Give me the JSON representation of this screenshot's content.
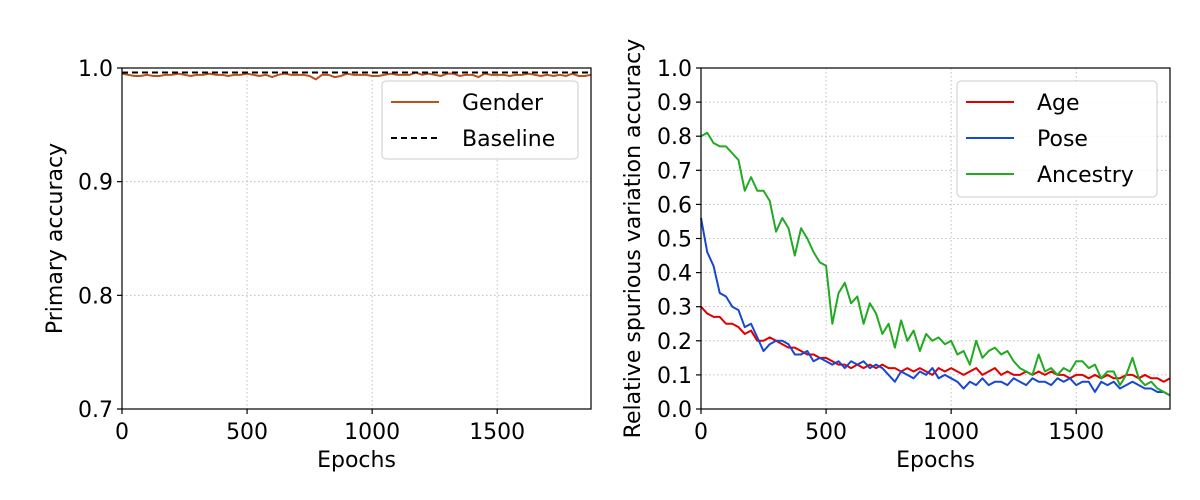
{
  "chart_data": [
    {
      "type": "line",
      "xlabel": "Epochs",
      "ylabel": "Primary accuracy",
      "xlim": [
        0,
        1875
      ],
      "ylim": [
        0.7,
        1.0
      ],
      "xticks": [
        0,
        500,
        1000,
        1500
      ],
      "yticks": [
        0.7,
        0.8,
        0.9,
        1.0
      ],
      "xtick_labels": [
        "0",
        "500",
        "1000",
        "1500"
      ],
      "ytick_labels": [
        "0.7",
        "0.8",
        "0.9",
        "1.0"
      ],
      "grid": true,
      "legend_position": "top-right",
      "series": [
        {
          "name": "Gender",
          "color": "#c0501a",
          "dash": "solid",
          "x": [
            0,
            25,
            50,
            75,
            100,
            125,
            150,
            175,
            200,
            225,
            250,
            275,
            300,
            325,
            350,
            375,
            400,
            425,
            450,
            475,
            500,
            525,
            550,
            575,
            600,
            625,
            650,
            675,
            700,
            725,
            750,
            775,
            800,
            825,
            850,
            875,
            900,
            925,
            950,
            975,
            1000,
            1025,
            1050,
            1075,
            1100,
            1125,
            1150,
            1175,
            1200,
            1225,
            1250,
            1275,
            1300,
            1325,
            1350,
            1375,
            1400,
            1425,
            1450,
            1475,
            1500,
            1525,
            1550,
            1575,
            1600,
            1625,
            1650,
            1675,
            1700,
            1725,
            1750,
            1775,
            1800,
            1825,
            1850,
            1875
          ],
          "y": [
            0.995,
            0.994,
            0.993,
            0.993,
            0.994,
            0.993,
            0.993,
            0.994,
            0.994,
            0.995,
            0.994,
            0.993,
            0.994,
            0.994,
            0.995,
            0.994,
            0.994,
            0.993,
            0.994,
            0.994,
            0.995,
            0.994,
            0.993,
            0.994,
            0.992,
            0.994,
            0.995,
            0.994,
            0.994,
            0.994,
            0.993,
            0.99,
            0.994,
            0.994,
            0.992,
            0.993,
            0.995,
            0.994,
            0.994,
            0.994,
            0.993,
            0.993,
            0.994,
            0.995,
            0.994,
            0.994,
            0.994,
            0.996,
            0.994,
            0.995,
            0.994,
            0.993,
            0.995,
            0.995,
            0.993,
            0.994,
            0.994,
            0.992,
            0.995,
            0.994,
            0.994,
            0.994,
            0.993,
            0.994,
            0.994,
            0.995,
            0.994,
            0.993,
            0.994,
            0.993,
            0.994,
            0.993,
            0.995,
            0.993,
            0.993,
            0.994
          ]
        },
        {
          "name": "Baseline",
          "color": "#000000",
          "dash": "dashed",
          "x": [
            0,
            1875
          ],
          "y": [
            0.996,
            0.996
          ]
        }
      ]
    },
    {
      "type": "line",
      "xlabel": "Epochs",
      "ylabel": "Relative spurious variation accuracy",
      "xlim": [
        0,
        1875
      ],
      "ylim": [
        0.0,
        1.0
      ],
      "xticks": [
        0,
        500,
        1000,
        1500
      ],
      "yticks": [
        0.0,
        0.1,
        0.2,
        0.3,
        0.4,
        0.5,
        0.6,
        0.7,
        0.8,
        0.9,
        1.0
      ],
      "xtick_labels": [
        "0",
        "500",
        "1000",
        "1500"
      ],
      "ytick_labels": [
        "0.0",
        "0.1",
        "0.2",
        "0.3",
        "0.4",
        "0.5",
        "0.6",
        "0.7",
        "0.8",
        "0.9",
        "1.0"
      ],
      "grid": true,
      "legend_position": "top-right",
      "series": [
        {
          "name": "Age",
          "color": "#e00000",
          "dash": "solid",
          "x": [
            0,
            25,
            50,
            75,
            100,
            125,
            150,
            175,
            200,
            225,
            250,
            275,
            300,
            325,
            350,
            375,
            400,
            425,
            450,
            475,
            500,
            525,
            550,
            575,
            600,
            625,
            650,
            675,
            700,
            725,
            750,
            775,
            800,
            825,
            850,
            875,
            900,
            925,
            950,
            975,
            1000,
            1025,
            1050,
            1075,
            1100,
            1125,
            1150,
            1175,
            1200,
            1225,
            1250,
            1275,
            1300,
            1325,
            1350,
            1375,
            1400,
            1425,
            1450,
            1475,
            1500,
            1525,
            1550,
            1575,
            1600,
            1625,
            1650,
            1675,
            1700,
            1725,
            1750,
            1775,
            1800,
            1825,
            1850,
            1875
          ],
          "y": [
            0.3,
            0.28,
            0.27,
            0.27,
            0.25,
            0.25,
            0.24,
            0.22,
            0.23,
            0.2,
            0.2,
            0.21,
            0.2,
            0.19,
            0.18,
            0.18,
            0.17,
            0.16,
            0.16,
            0.15,
            0.15,
            0.14,
            0.13,
            0.13,
            0.12,
            0.13,
            0.12,
            0.13,
            0.12,
            0.13,
            0.12,
            0.12,
            0.11,
            0.12,
            0.11,
            0.12,
            0.11,
            0.1,
            0.12,
            0.11,
            0.12,
            0.11,
            0.1,
            0.11,
            0.12,
            0.1,
            0.11,
            0.12,
            0.1,
            0.11,
            0.1,
            0.1,
            0.11,
            0.1,
            0.11,
            0.1,
            0.11,
            0.1,
            0.1,
            0.09,
            0.1,
            0.1,
            0.09,
            0.1,
            0.09,
            0.1,
            0.09,
            0.09,
            0.1,
            0.1,
            0.09,
            0.1,
            0.09,
            0.09,
            0.08,
            0.09
          ]
        },
        {
          "name": "Pose",
          "color": "#1848d0",
          "dash": "solid",
          "x": [
            0,
            25,
            50,
            75,
            100,
            125,
            150,
            175,
            200,
            225,
            250,
            275,
            300,
            325,
            350,
            375,
            400,
            425,
            450,
            475,
            500,
            525,
            550,
            575,
            600,
            625,
            650,
            675,
            700,
            725,
            750,
            775,
            800,
            825,
            850,
            875,
            900,
            925,
            950,
            975,
            1000,
            1025,
            1050,
            1075,
            1100,
            1125,
            1150,
            1175,
            1200,
            1225,
            1250,
            1275,
            1300,
            1325,
            1350,
            1375,
            1400,
            1425,
            1450,
            1475,
            1500,
            1525,
            1550,
            1575,
            1600,
            1625,
            1650,
            1675,
            1700,
            1725,
            1750,
            1775,
            1800,
            1825,
            1850,
            1875
          ],
          "y": [
            0.56,
            0.46,
            0.42,
            0.34,
            0.33,
            0.3,
            0.29,
            0.24,
            0.25,
            0.21,
            0.17,
            0.19,
            0.2,
            0.2,
            0.19,
            0.16,
            0.16,
            0.17,
            0.14,
            0.15,
            0.14,
            0.13,
            0.14,
            0.12,
            0.14,
            0.13,
            0.14,
            0.12,
            0.13,
            0.12,
            0.1,
            0.08,
            0.11,
            0.1,
            0.09,
            0.11,
            0.1,
            0.12,
            0.09,
            0.1,
            0.09,
            0.08,
            0.06,
            0.08,
            0.07,
            0.09,
            0.07,
            0.08,
            0.08,
            0.07,
            0.09,
            0.08,
            0.07,
            0.09,
            0.08,
            0.08,
            0.07,
            0.09,
            0.08,
            0.09,
            0.07,
            0.08,
            0.08,
            0.05,
            0.08,
            0.07,
            0.08,
            0.06,
            0.07,
            0.08,
            0.07,
            0.06,
            0.06,
            0.05,
            0.05,
            0.04
          ]
        },
        {
          "name": "Ancestry",
          "color": "#22aa22",
          "dash": "solid",
          "x": [
            0,
            25,
            50,
            75,
            100,
            125,
            150,
            175,
            200,
            225,
            250,
            275,
            300,
            325,
            350,
            375,
            400,
            425,
            450,
            475,
            500,
            525,
            550,
            575,
            600,
            625,
            650,
            675,
            700,
            725,
            750,
            775,
            800,
            825,
            850,
            875,
            900,
            925,
            950,
            975,
            1000,
            1025,
            1050,
            1075,
            1100,
            1125,
            1150,
            1175,
            1200,
            1225,
            1250,
            1275,
            1300,
            1325,
            1350,
            1375,
            1400,
            1425,
            1450,
            1475,
            1500,
            1525,
            1550,
            1575,
            1600,
            1625,
            1650,
            1675,
            1700,
            1725,
            1750,
            1775,
            1800,
            1825,
            1850,
            1875
          ],
          "y": [
            0.8,
            0.81,
            0.78,
            0.77,
            0.77,
            0.75,
            0.73,
            0.64,
            0.68,
            0.64,
            0.64,
            0.61,
            0.52,
            0.56,
            0.53,
            0.45,
            0.53,
            0.5,
            0.46,
            0.43,
            0.42,
            0.25,
            0.34,
            0.37,
            0.31,
            0.33,
            0.25,
            0.31,
            0.28,
            0.22,
            0.25,
            0.18,
            0.26,
            0.2,
            0.23,
            0.17,
            0.22,
            0.2,
            0.21,
            0.19,
            0.2,
            0.16,
            0.17,
            0.13,
            0.2,
            0.15,
            0.17,
            0.18,
            0.16,
            0.17,
            0.14,
            0.12,
            0.11,
            0.1,
            0.16,
            0.11,
            0.12,
            0.1,
            0.12,
            0.11,
            0.14,
            0.14,
            0.12,
            0.13,
            0.09,
            0.11,
            0.11,
            0.07,
            0.1,
            0.15,
            0.09,
            0.07,
            0.08,
            0.06,
            0.05,
            0.04
          ]
        }
      ]
    }
  ]
}
